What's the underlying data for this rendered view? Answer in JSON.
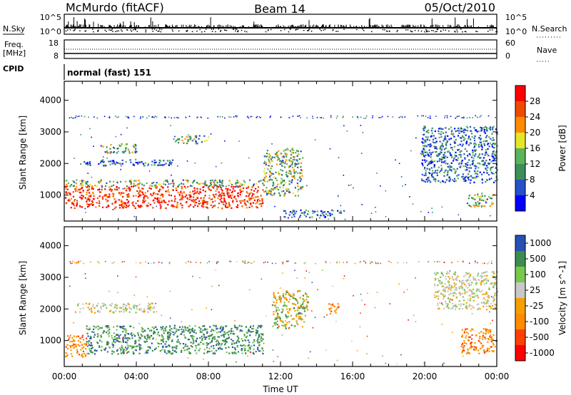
{
  "header": {
    "station": "McMurdo (fitACF)",
    "beam": "Beam 14",
    "date": "05/Oct/2010"
  },
  "strips": {
    "nsky_label": "N.Sky",
    "nsky_ticks": [
      "10^5",
      "10^0"
    ],
    "nsearch_label": "N.Search",
    "nsearch_ticks": [
      "10^5",
      "10^0"
    ],
    "freq_label_line1": "Freq.",
    "freq_label_line2": "[MHz]",
    "freq_ticks": [
      "18",
      "8"
    ],
    "nave_label": "Nave",
    "nave_ticks": [
      "60",
      "0"
    ],
    "cpid_label": "CPID",
    "cpid_value": "normal (fast) 151"
  },
  "colors": {
    "power_scale": [
      "#0000ff",
      "#2850c8",
      "#3e8e5a",
      "#5ab45a",
      "#e6e628",
      "#ff8c00",
      "#f04a00",
      "#ff0000"
    ],
    "velocity_scale": [
      "#ff0000",
      "#ff4000",
      "#ff8c00",
      "#f5a000",
      "#c8c8c8",
      "#78c850",
      "#3c8c50",
      "#2850b4"
    ]
  },
  "chart_data": [
    {
      "type": "heatmap",
      "panel": "power",
      "ylabel": "Slant Range [km]",
      "ylim": [
        180,
        4600
      ],
      "yticks": [
        1000,
        2000,
        3000,
        4000
      ],
      "xlim_hours": [
        0,
        24
      ],
      "colorbar_label": "Power [dB]",
      "colorbar_ticks": [
        4,
        8,
        12,
        16,
        20,
        24,
        28
      ],
      "colorbar_range": [
        0,
        32
      ],
      "regions": [
        {
          "t": [
            0.0,
            11.0
          ],
          "r": [
            600,
            1300
          ],
          "level": "high"
        },
        {
          "t": [
            0.0,
            11.0
          ],
          "r": [
            1300,
            1500
          ],
          "level": "mid"
        },
        {
          "t": [
            0.7,
            6.0
          ],
          "r": [
            1950,
            2150
          ],
          "level": "low"
        },
        {
          "t": [
            2.0,
            4.0
          ],
          "r": [
            2350,
            2650
          ],
          "level": "mid"
        },
        {
          "t": [
            6.0,
            8.0
          ],
          "r": [
            2650,
            2900
          ],
          "level": "mid"
        },
        {
          "t": [
            11.0,
            13.2
          ],
          "r": [
            1000,
            2500
          ],
          "level": "mid"
        },
        {
          "t": [
            12.0,
            15.5
          ],
          "r": [
            300,
            550
          ],
          "level": "low"
        },
        {
          "t": [
            19.8,
            24.0
          ],
          "r": [
            1400,
            3200
          ],
          "level": "low"
        },
        {
          "t": [
            22.3,
            23.8
          ],
          "r": [
            650,
            1100
          ],
          "level": "mid"
        }
      ]
    },
    {
      "type": "heatmap",
      "panel": "velocity",
      "ylabel": "Slant Range [km]",
      "xlabel": "Time UT",
      "ylim": [
        180,
        4600
      ],
      "yticks": [
        1000,
        2000,
        3000,
        4000
      ],
      "xlim_hours": [
        0,
        24
      ],
      "xticks": [
        "00:00",
        "04:00",
        "08:00",
        "12:00",
        "16:00",
        "20:00",
        "00:00"
      ],
      "colorbar_label": "Velocity [m s^-1]",
      "colorbar_ticks": [
        "1000",
        "500",
        "100",
        "25",
        "-25",
        "-100",
        "-500",
        "-1000"
      ],
      "regions": [
        {
          "t": [
            0.0,
            1.2
          ],
          "r": [
            500,
            1200
          ],
          "level": "away"
        },
        {
          "t": [
            1.2,
            11.0
          ],
          "r": [
            600,
            1500
          ],
          "level": "toward"
        },
        {
          "t": [
            0.5,
            5.0
          ],
          "r": [
            1900,
            2200
          ],
          "level": "zero"
        },
        {
          "t": [
            11.5,
            13.5
          ],
          "r": [
            1400,
            2600
          ],
          "level": "weak"
        },
        {
          "t": [
            14.5,
            15.2
          ],
          "r": [
            1800,
            2200
          ],
          "level": "away"
        },
        {
          "t": [
            20.5,
            24.0
          ],
          "r": [
            2000,
            3200
          ],
          "level": "zero"
        },
        {
          "t": [
            22.0,
            24.0
          ],
          "r": [
            600,
            1400
          ],
          "level": "away"
        }
      ]
    }
  ]
}
